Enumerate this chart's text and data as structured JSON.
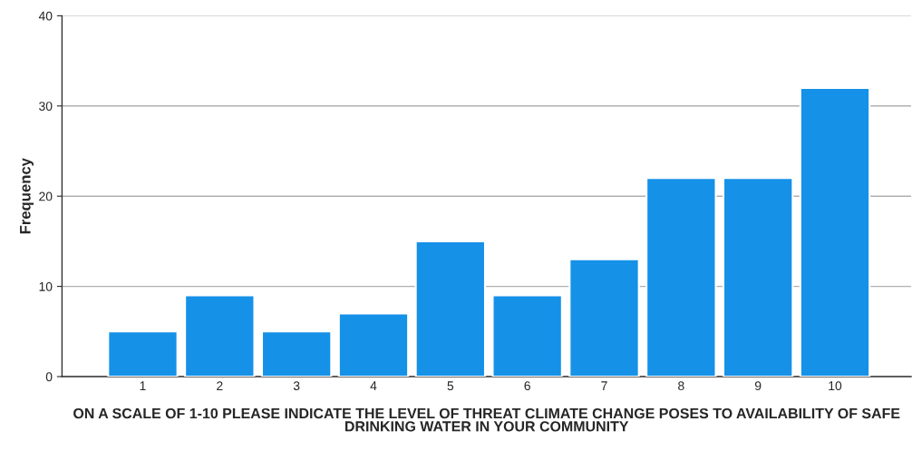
{
  "chart_data": {
    "type": "bar",
    "xlabel": "ON A SCALE OF 1-10 PLEASE INDICATE THE LEVEL OF THREAT CLIMATE CHANGE POSES TO AVAILABILITY OF SAFE DRINKING WATER IN YOUR COMMUNITY",
    "ylabel": "Frequency",
    "categories": [
      "1",
      "2",
      "3",
      "4",
      "5",
      "6",
      "7",
      "8",
      "9",
      "10"
    ],
    "values": [
      5,
      9,
      5,
      7,
      15,
      9,
      13,
      22,
      22,
      32
    ],
    "color": "#1591e8",
    "ylim": [
      0,
      40
    ],
    "yticks": [
      0,
      10,
      20,
      30,
      40
    ],
    "grid": "y"
  }
}
